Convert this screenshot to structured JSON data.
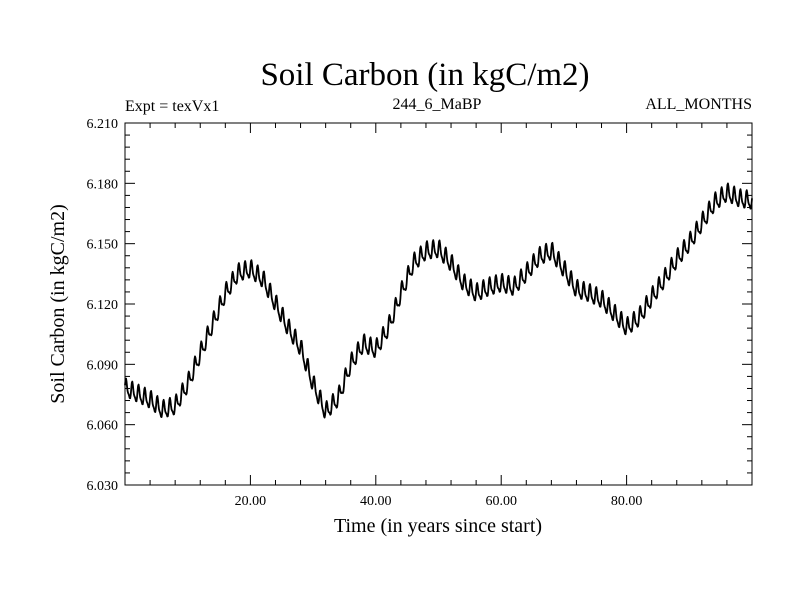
{
  "chart_data": {
    "type": "line",
    "title": "Soil Carbon (in kgC/m2)",
    "subtitle_left": "Expt = texVx1",
    "subtitle_center": "244_6_MaBP",
    "subtitle_right": "ALL_MONTHS",
    "xlabel": "Time (in years since start)",
    "ylabel": "Soil Carbon (in kgC/m2)",
    "xlim": [
      0,
      100
    ],
    "ylim": [
      6.03,
      6.21
    ],
    "xticks": [
      20,
      40,
      60,
      80
    ],
    "xtick_labels": [
      "20.00",
      "40.00",
      "60.00",
      "80.00"
    ],
    "yticks": [
      6.03,
      6.06,
      6.09,
      6.12,
      6.15,
      6.18,
      6.21
    ],
    "ytick_labels": [
      "6.030",
      "6.060",
      "6.090",
      "6.120",
      "6.150",
      "6.180",
      "6.210"
    ],
    "series": [
      {
        "name": "Soil Carbon",
        "color": "#000000",
        "seasonal_amplitude": 0.004,
        "trend_x": [
          0,
          2,
          4,
          6,
          8,
          10,
          12,
          14,
          16,
          18,
          20,
          22,
          24,
          26,
          28,
          30,
          32,
          34,
          36,
          38,
          40,
          42,
          44,
          46,
          48,
          50,
          52,
          54,
          56,
          58,
          60,
          62,
          64,
          66,
          68,
          70,
          72,
          74,
          76,
          78,
          80,
          82,
          84,
          86,
          88,
          90,
          92,
          94,
          96,
          98,
          100
        ],
        "trend_y": [
          6.078,
          6.075,
          6.072,
          6.067,
          6.069,
          6.08,
          6.095,
          6.11,
          6.125,
          6.135,
          6.137,
          6.132,
          6.12,
          6.108,
          6.098,
          6.08,
          6.066,
          6.073,
          6.09,
          6.1,
          6.097,
          6.108,
          6.125,
          6.14,
          6.146,
          6.147,
          6.14,
          6.13,
          6.125,
          6.128,
          6.13,
          6.128,
          6.135,
          6.143,
          6.146,
          6.137,
          6.127,
          6.125,
          6.122,
          6.115,
          6.108,
          6.113,
          6.123,
          6.132,
          6.142,
          6.15,
          6.16,
          6.17,
          6.175,
          6.172,
          6.171
        ]
      }
    ]
  }
}
